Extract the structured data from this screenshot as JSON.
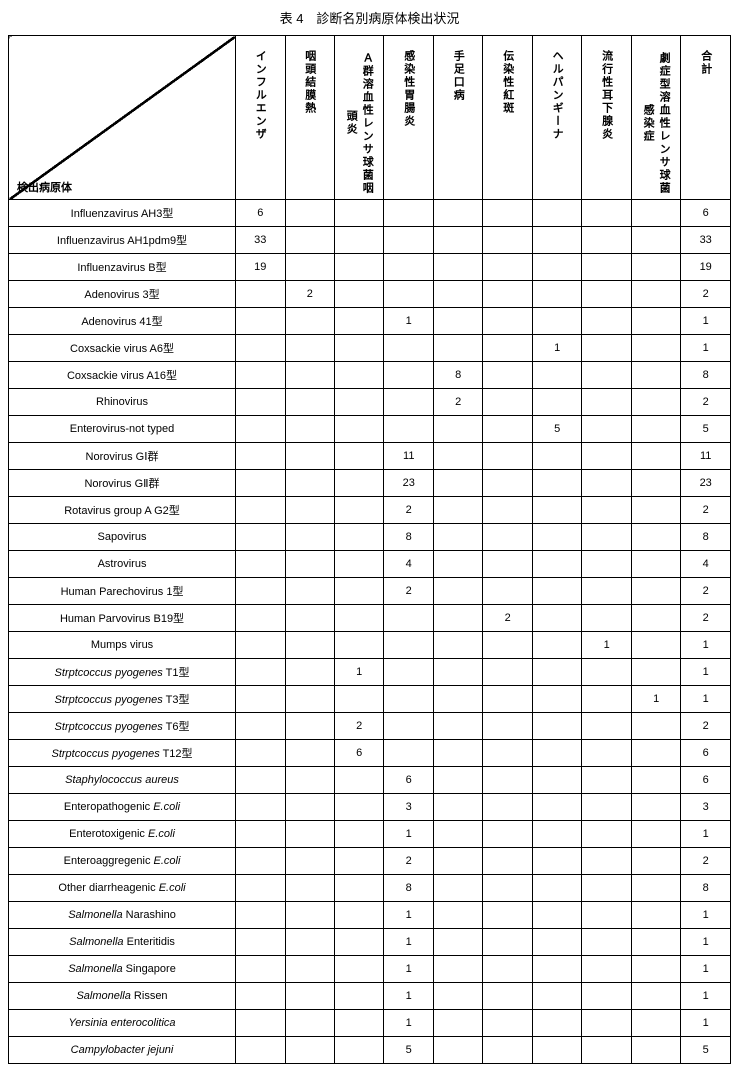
{
  "title": "表 4　診断名別病原体検出状況",
  "diag_label": "検出病原体",
  "columns": [
    "インフルエンザ",
    "咽頭結膜熱",
    "Ａ群溶血性レンサ球菌咽頭炎",
    "感染性胃腸炎",
    "手足口病",
    "伝染性紅斑",
    "ヘルパンギーナ",
    "流行性耳下腺炎",
    "劇症型溶血性レンサ球菌感染症",
    "合計"
  ],
  "rows": [
    {
      "name": "Influenzavirus AH3型",
      "v": [
        "6",
        "",
        "",
        "",
        "",
        "",
        "",
        "",
        "",
        "6"
      ]
    },
    {
      "name": "Influenzavirus AH1pdm9型",
      "v": [
        "33",
        "",
        "",
        "",
        "",
        "",
        "",
        "",
        "",
        "33"
      ]
    },
    {
      "name": "Influenzavirus B型",
      "v": [
        "19",
        "",
        "",
        "",
        "",
        "",
        "",
        "",
        "",
        "19"
      ]
    },
    {
      "name": "Adenovirus 3型",
      "v": [
        "",
        "2",
        "",
        "",
        "",
        "",
        "",
        "",
        "",
        "2"
      ]
    },
    {
      "name": "Adenovirus 41型",
      "v": [
        "",
        "",
        "",
        "1",
        "",
        "",
        "",
        "",
        "",
        "1"
      ]
    },
    {
      "name": "Coxsackie virus A6型",
      "v": [
        "",
        "",
        "",
        "",
        "",
        "",
        "1",
        "",
        "",
        "1"
      ]
    },
    {
      "name": "Coxsackie virus A16型",
      "v": [
        "",
        "",
        "",
        "",
        "8",
        "",
        "",
        "",
        "",
        "8"
      ]
    },
    {
      "name": "Rhinovirus",
      "v": [
        "",
        "",
        "",
        "",
        "2",
        "",
        "",
        "",
        "",
        "2"
      ]
    },
    {
      "name": "Enterovirus-not typed",
      "v": [
        "",
        "",
        "",
        "",
        "",
        "",
        "5",
        "",
        "",
        "5"
      ]
    },
    {
      "name": "Norovirus GⅠ群",
      "v": [
        "",
        "",
        "",
        "11",
        "",
        "",
        "",
        "",
        "",
        "11"
      ]
    },
    {
      "name": "Norovirus GⅡ群",
      "v": [
        "",
        "",
        "",
        "23",
        "",
        "",
        "",
        "",
        "",
        "23"
      ]
    },
    {
      "name": "Rotavirus group A G2型",
      "v": [
        "",
        "",
        "",
        "2",
        "",
        "",
        "",
        "",
        "",
        "2"
      ]
    },
    {
      "name": "Sapovirus",
      "v": [
        "",
        "",
        "",
        "8",
        "",
        "",
        "",
        "",
        "",
        "8"
      ]
    },
    {
      "name": "Astrovirus",
      "v": [
        "",
        "",
        "",
        "4",
        "",
        "",
        "",
        "",
        "",
        "4"
      ]
    },
    {
      "name": "Human Parechovirus 1型",
      "v": [
        "",
        "",
        "",
        "2",
        "",
        "",
        "",
        "",
        "",
        "2"
      ]
    },
    {
      "name": "Human Parvovirus  B19型",
      "v": [
        "",
        "",
        "",
        "",
        "",
        "2",
        "",
        "",
        "",
        "2"
      ]
    },
    {
      "name": "Mumps virus",
      "v": [
        "",
        "",
        "",
        "",
        "",
        "",
        "",
        "1",
        "",
        "1"
      ]
    },
    {
      "name": "Strptcoccus pyogenes T1型",
      "italicEnd": 20,
      "v": [
        "",
        "",
        "1",
        "",
        "",
        "",
        "",
        "",
        "",
        "1"
      ]
    },
    {
      "name": "Strptcoccus pyogenes T3型",
      "italicEnd": 20,
      "v": [
        "",
        "",
        "",
        "",
        "",
        "",
        "",
        "",
        "1",
        "1"
      ]
    },
    {
      "name": "Strptcoccus pyogenes T6型",
      "italicEnd": 20,
      "v": [
        "",
        "",
        "2",
        "",
        "",
        "",
        "",
        "",
        "",
        "2"
      ]
    },
    {
      "name": "Strptcoccus pyogenes T12型",
      "italicEnd": 20,
      "v": [
        "",
        "",
        "6",
        "",
        "",
        "",
        "",
        "",
        "",
        "6"
      ]
    },
    {
      "name": "Staphylococcus aureus",
      "italic": true,
      "v": [
        "",
        "",
        "",
        "6",
        "",
        "",
        "",
        "",
        "",
        "6"
      ]
    },
    {
      "name": "Enteropathogenic E.coli",
      "italicAfter": "Enteropathogenic",
      "v": [
        "",
        "",
        "",
        "3",
        "",
        "",
        "",
        "",
        "",
        "3"
      ]
    },
    {
      "name": "Enterotoxigenic E.coli",
      "italicAfter": "Enterotoxigenic",
      "v": [
        "",
        "",
        "",
        "1",
        "",
        "",
        "",
        "",
        "",
        "1"
      ]
    },
    {
      "name": "Enteroaggregenic E.coli",
      "italicAfter": "Enteroaggregenic",
      "v": [
        "",
        "",
        "",
        "2",
        "",
        "",
        "",
        "",
        "",
        "2"
      ]
    },
    {
      "name": "Other diarrheagenic E.coli",
      "italicAfter": "Other diarrheagenic",
      "v": [
        "",
        "",
        "",
        "8",
        "",
        "",
        "",
        "",
        "",
        "8"
      ]
    },
    {
      "name": "Salmonella Narashino",
      "italicEnd": 10,
      "v": [
        "",
        "",
        "",
        "1",
        "",
        "",
        "",
        "",
        "",
        "1"
      ]
    },
    {
      "name": "Salmonella Enteritidis",
      "italicEnd": 10,
      "v": [
        "",
        "",
        "",
        "1",
        "",
        "",
        "",
        "",
        "",
        "1"
      ]
    },
    {
      "name": "Salmonella Singapore",
      "italicEnd": 10,
      "v": [
        "",
        "",
        "",
        "1",
        "",
        "",
        "",
        "",
        "",
        "1"
      ]
    },
    {
      "name": "Salmonella Rissen",
      "italicEnd": 10,
      "v": [
        "",
        "",
        "",
        "1",
        "",
        "",
        "",
        "",
        "",
        "1"
      ]
    },
    {
      "name": "Yersinia enterocolitica",
      "italic": true,
      "v": [
        "",
        "",
        "",
        "1",
        "",
        "",
        "",
        "",
        "",
        "1"
      ]
    },
    {
      "name": "Campylobacter jejuni",
      "italic": true,
      "v": [
        "",
        "",
        "",
        "5",
        "",
        "",
        "",
        "",
        "",
        "5"
      ]
    }
  ]
}
